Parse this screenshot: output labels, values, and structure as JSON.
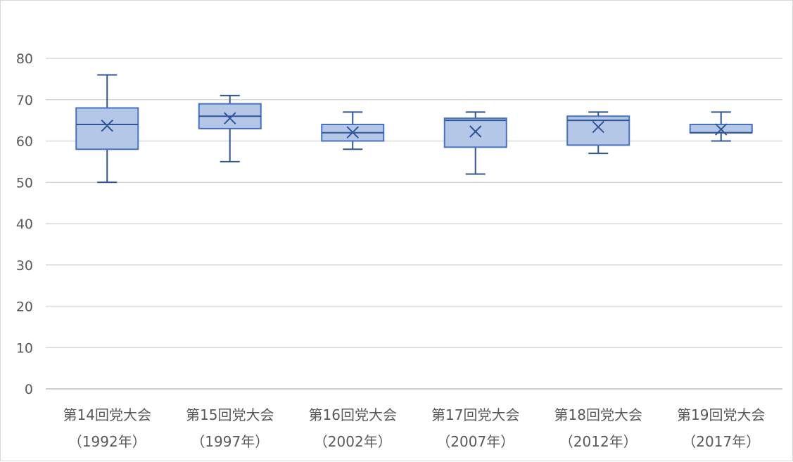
{
  "chart_data": {
    "type": "box",
    "title": "",
    "xlabel": "",
    "ylabel": "",
    "ylim": [
      0,
      80
    ],
    "yticks": [
      0,
      10,
      20,
      30,
      40,
      50,
      60,
      70,
      80
    ],
    "grid": true,
    "colors": {
      "box_fill": "#b4c7e7",
      "box_stroke": "#4472c4",
      "whisker": "#2f5597"
    },
    "categories": [
      {
        "line1": "第14回党大会",
        "line2": "（1992年）"
      },
      {
        "line1": "第15回党大会",
        "line2": "（1997年）"
      },
      {
        "line1": "第16回党大会",
        "line2": "（2002年）"
      },
      {
        "line1": "第17回党大会",
        "line2": "（2007年）"
      },
      {
        "line1": "第18回党大会",
        "line2": "（2012年）"
      },
      {
        "line1": "第19回党大会",
        "line2": "（2017年）"
      }
    ],
    "boxes": [
      {
        "min": 50,
        "q1": 58,
        "median": 64,
        "q3": 68,
        "max": 76,
        "mean": 63.7
      },
      {
        "min": 55,
        "q1": 63,
        "median": 66,
        "q3": 69,
        "max": 71,
        "mean": 65.5
      },
      {
        "min": 58,
        "q1": 60,
        "median": 62,
        "q3": 64,
        "max": 67,
        "mean": 62.1
      },
      {
        "min": 52,
        "q1": 58.5,
        "median": 65,
        "q3": 65.5,
        "max": 67,
        "mean": 62.3
      },
      {
        "min": 57,
        "q1": 59,
        "median": 65,
        "q3": 66,
        "max": 67,
        "mean": 63.4
      },
      {
        "min": 60,
        "q1": 62,
        "median": 62,
        "q3": 64,
        "max": 67,
        "mean": 62.8
      }
    ]
  }
}
